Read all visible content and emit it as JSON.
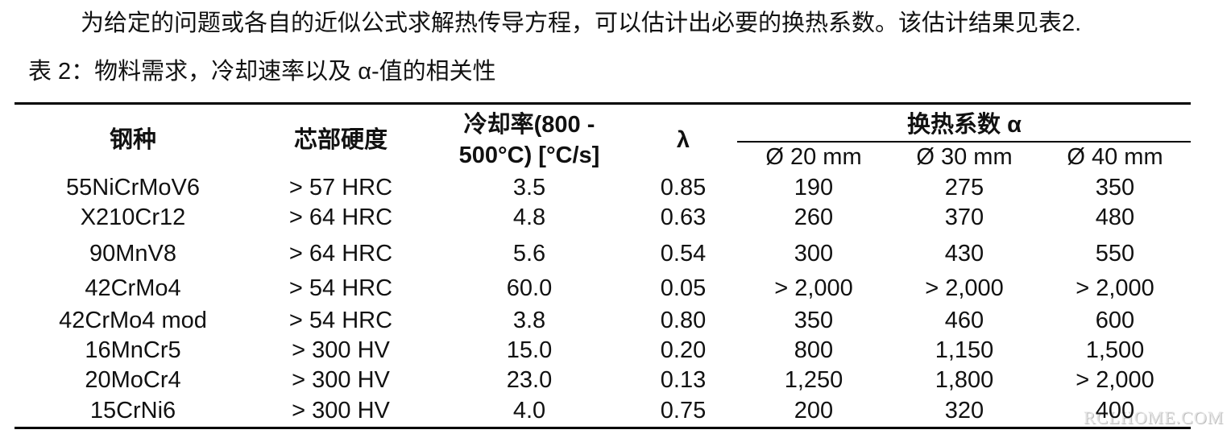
{
  "paragraph": "为给定的问题或各自的近似公式求解热传导方程，可以估计出必要的换热系数。该估计结果见表2.",
  "table": {
    "caption": "表 2：物料需求，冷却速率以及 α-值的相关性",
    "headers": [
      "钢种",
      "芯部硬度",
      "冷却率(800 - 500°C) [°C/s]",
      "λ",
      "换热系数 α"
    ],
    "subheaders": [
      "Ø 20 mm",
      "Ø 30 mm",
      "Ø 40 mm"
    ],
    "rows": [
      [
        "55NiCrMoV6",
        "> 57 HRC",
        "3.5",
        "0.85",
        "190",
        "275",
        "350"
      ],
      [
        "X210Cr12",
        "> 64 HRC",
        "4.8",
        "0.63",
        "260",
        "370",
        "480"
      ],
      [
        "90MnV8",
        "> 64 HRC",
        "5.6",
        "0.54",
        "300",
        "430",
        "550"
      ],
      [
        "42CrMo4",
        "> 54 HRC",
        "60.0",
        "0.05",
        "> 2,000",
        "> 2,000",
        "> 2,000"
      ],
      [
        "42CrMo4 mod",
        "> 54 HRC",
        "3.8",
        "0.80",
        "350",
        "460",
        "600"
      ],
      [
        "16MnCr5",
        "> 300 HV",
        "15.0",
        "0.20",
        "800",
        "1,150",
        "1,500"
      ],
      [
        "20MoCr4",
        "> 300 HV",
        "23.0",
        "0.13",
        "1,250",
        "1,800",
        "> 2,000"
      ],
      [
        "15CrNi6",
        "> 300 HV",
        "4.0",
        "0.75",
        "200",
        "320",
        "400"
      ]
    ]
  },
  "watermark": "RCLHOME.COM"
}
